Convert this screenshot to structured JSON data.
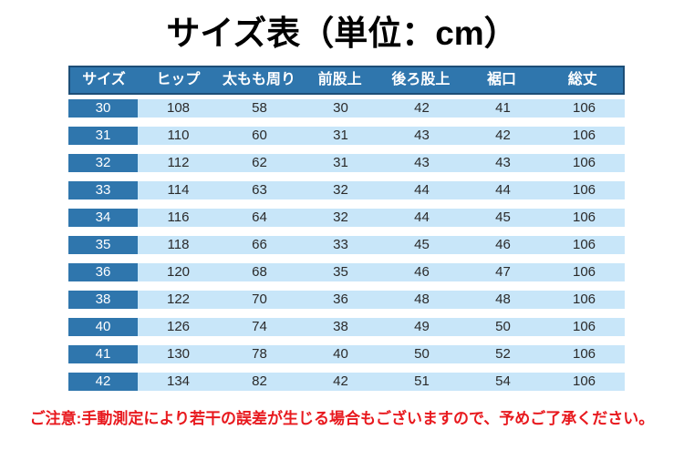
{
  "title": "サイズ表（単位：cm）",
  "note": "ご注意:手動測定により若干の誤差が生じる場合もございますので、予めご了承ください。",
  "colors": {
    "header_blue": "#2f76ad",
    "row_blue": "#c8e6f9",
    "border_navy": "#1d4e77",
    "note_red": "#e8191e",
    "title_black": "#000000",
    "data_text": "#2a2a2a"
  },
  "chart_data": {
    "type": "table",
    "title": "サイズ表（単位：cm）",
    "unit": "cm",
    "columns": [
      "サイズ",
      "ヒップ",
      "太もも周り",
      "前股上",
      "後ろ股上",
      "裾口",
      "総丈"
    ],
    "rows": [
      [
        30,
        108,
        58,
        30,
        42,
        41,
        106
      ],
      [
        31,
        110,
        60,
        31,
        43,
        42,
        106
      ],
      [
        32,
        112,
        62,
        31,
        43,
        43,
        106
      ],
      [
        33,
        114,
        63,
        32,
        44,
        44,
        106
      ],
      [
        34,
        116,
        64,
        32,
        44,
        45,
        106
      ],
      [
        35,
        118,
        66,
        33,
        45,
        46,
        106
      ],
      [
        36,
        120,
        68,
        35,
        46,
        47,
        106
      ],
      [
        38,
        122,
        70,
        36,
        48,
        48,
        106
      ],
      [
        40,
        126,
        74,
        38,
        49,
        50,
        106
      ],
      [
        41,
        130,
        78,
        40,
        50,
        52,
        106
      ],
      [
        42,
        134,
        82,
        42,
        51,
        54,
        106
      ]
    ]
  }
}
